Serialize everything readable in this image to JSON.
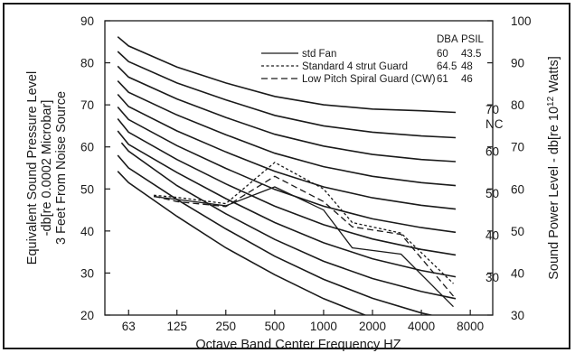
{
  "chart_data": {
    "type": "line",
    "x_scale": "log2",
    "x_ticks": [
      "63",
      "125",
      "250",
      "500",
      "1000",
      "2000",
      "4000",
      "8000"
    ],
    "x_tick_values": [
      63,
      125,
      250,
      500,
      1000,
      2000,
      4000,
      8000
    ],
    "xlim": [
      45,
      11000
    ],
    "xlabel": "Octave Band Center Frequency HZ",
    "ylim": [
      20,
      90
    ],
    "y_ticks": [
      20,
      30,
      40,
      50,
      60,
      70,
      80,
      90
    ],
    "ylabel_lines": [
      "Equivalent Sound Pressure Level",
      "-db[re 0.0002 Microbar]",
      "3 Feet From Noise Source"
    ],
    "y2_ticks": [
      30,
      40,
      50,
      60,
      70,
      80,
      90,
      100
    ],
    "y2_offset": 10,
    "y2label": "Sound Power Level - db[re 10",
    "y2label_sup": "12",
    "y2label_end": " Watts]",
    "nc_header": "NC",
    "nc_labels": [
      "70",
      "60",
      "50",
      "40",
      "30"
    ],
    "nc_label_y": [
      69,
      59,
      49,
      39,
      29
    ],
    "nc_curves": [
      {
        "x": [
          54,
          63,
          125,
          250,
          500,
          1000,
          2000,
          4000,
          6500
        ],
        "y": [
          86.2,
          84.0,
          79.0,
          75.2,
          72.0,
          70.0,
          69.0,
          68.6,
          68.2
        ]
      },
      {
        "x": [
          54,
          63,
          125,
          250,
          500,
          1000,
          2000,
          4000,
          6500
        ],
        "y": [
          82.7,
          80.3,
          75.2,
          71.2,
          67.5,
          65.0,
          63.5,
          62.6,
          62.2
        ]
      },
      {
        "x": [
          54,
          63,
          125,
          250,
          500,
          1000,
          2000,
          4000,
          6500
        ],
        "y": [
          79.2,
          76.6,
          71.4,
          67.0,
          63.0,
          60.2,
          58.2,
          57.0,
          56.5
        ]
      },
      {
        "x": [
          54,
          63,
          125,
          250,
          500,
          1000,
          2000,
          4000,
          6500
        ],
        "y": [
          75.7,
          73.0,
          67.6,
          62.9,
          58.5,
          55.3,
          53.0,
          51.5,
          50.8
        ]
      },
      {
        "x": [
          54,
          63,
          125,
          250,
          500,
          1000,
          2000,
          4000,
          6500
        ],
        "y": [
          72.5,
          69.6,
          63.8,
          58.8,
          54.2,
          50.5,
          47.9,
          46.1,
          45.2
        ]
      },
      {
        "x": [
          54,
          63,
          125,
          250,
          500,
          1000,
          2000,
          4000,
          6500
        ],
        "y": [
          69.5,
          66.5,
          60.3,
          54.9,
          49.9,
          45.9,
          42.9,
          40.8,
          39.7
        ]
      },
      {
        "x": [
          54,
          63,
          125,
          250,
          500,
          1000,
          2000,
          4000,
          6500
        ],
        "y": [
          66.7,
          63.5,
          57.0,
          51.2,
          45.9,
          41.5,
          38.1,
          35.6,
          34.3
        ]
      },
      {
        "x": [
          54,
          63,
          125,
          250,
          500,
          1000,
          2000,
          4000,
          6500
        ],
        "y": [
          63.8,
          60.6,
          53.9,
          47.7,
          42.0,
          37.2,
          33.4,
          30.6,
          29.1
        ]
      },
      {
        "x": [
          57,
          63,
          125,
          250,
          500,
          1000,
          2000,
          4000,
          6500
        ],
        "y": [
          61.0,
          59.0,
          50.8,
          44.1,
          38.0,
          32.8,
          28.7,
          25.6,
          23.9
        ]
      },
      {
        "x": [
          54,
          63,
          125,
          250,
          500,
          1000,
          2000,
          4000,
          6500
        ],
        "y": [
          58.0,
          55.0,
          47.5,
          40.5,
          34.0,
          28.5,
          24.0,
          20.5,
          18.7
        ]
      },
      {
        "x": [
          54,
          63,
          125,
          250,
          500,
          1000,
          2000,
          4000,
          6500
        ],
        "y": [
          54.2,
          51.5,
          43.5,
          36.0,
          29.6,
          23.9,
          19.3,
          15.6,
          13.6
        ]
      }
    ],
    "legend_header": [
      "DBA",
      "PSIL"
    ],
    "series": [
      {
        "name": "std Fan",
        "dba": "60",
        "psil": "43.5",
        "style": "solid",
        "x": [
          90,
          125,
          250,
          500,
          1000,
          1500,
          3000,
          6300
        ],
        "y": [
          48.2,
          47.5,
          46.0,
          50.5,
          45.0,
          36.0,
          34.5,
          22.0
        ]
      },
      {
        "name": "Standard 4 strut Guard",
        "dba": "64.5",
        "psil": "48",
        "style": "dotted",
        "x": [
          90,
          125,
          250,
          500,
          1000,
          1500,
          3000,
          6300
        ],
        "y": [
          48.5,
          48.0,
          46.5,
          56.3,
          50.0,
          42.0,
          39.5,
          27.5
        ]
      },
      {
        "name": "Low Pitch Spiral Guard (CW)",
        "dba": "61",
        "psil": "46",
        "style": "dashed",
        "x": [
          90,
          125,
          250,
          500,
          1000,
          1500,
          3000,
          6300
        ],
        "y": [
          48.3,
          47.0,
          45.8,
          53.0,
          47.0,
          41.0,
          39.2,
          24.5
        ]
      }
    ],
    "grid": false,
    "legend_position": "top-right",
    "colors": {
      "line": "#1a1a1a",
      "background": "#ffffff"
    }
  }
}
